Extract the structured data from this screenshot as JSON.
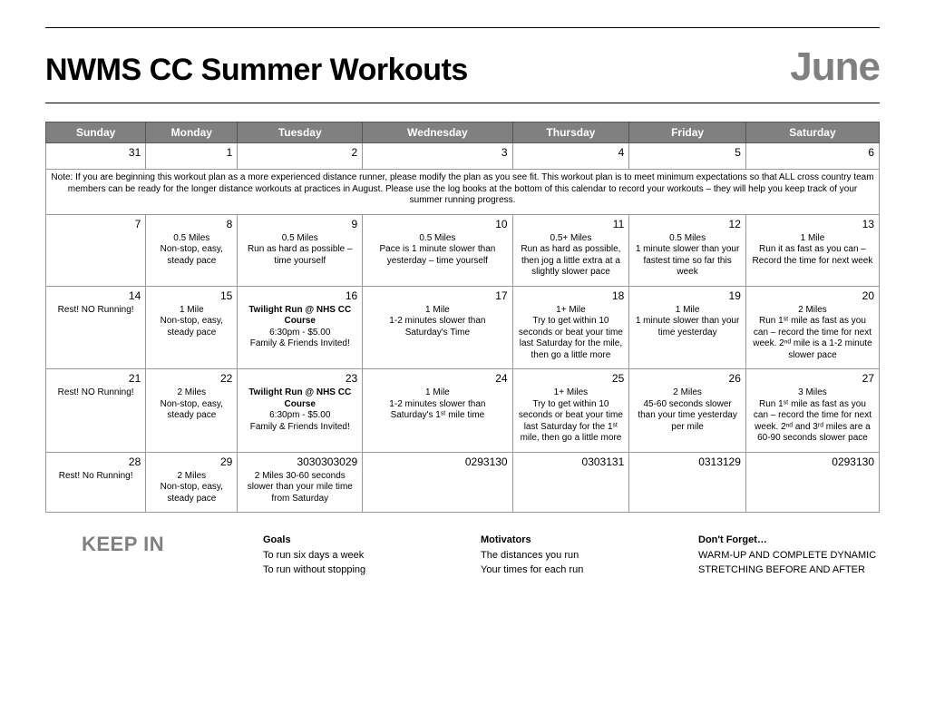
{
  "header": {
    "title": "NWMS CC Summer Workouts",
    "month": "June"
  },
  "days": [
    "Sunday",
    "Monday",
    "Tuesday",
    "Wednesday",
    "Thursday",
    "Friday",
    "Saturday"
  ],
  "note": "Note: If you are beginning this workout plan as a more experienced distance runner, please modify the plan as you see fit. This workout plan is to meet minimum expectations so that ALL cross country team members can be ready for the longer distance workouts at practices in August. Please use the log books at the bottom of this calendar to record your workouts – they will help you keep track of your summer running progress.",
  "row1": {
    "d0": "31",
    "d1": "1",
    "d2": "2",
    "d3": "3",
    "d4": "4",
    "d5": "5",
    "d6": "6"
  },
  "row2": {
    "d0": "7",
    "d1": "8",
    "d2": "9",
    "d3": "10",
    "d4": "11",
    "d5": "12",
    "d6": "13",
    "c1": "0.5 Miles\nNon-stop, easy, steady pace",
    "c2": "0.5 Miles\nRun as hard as possible – time yourself",
    "c3": "0.5 Miles\nPace is 1 minute slower than yesterday – time yourself",
    "c4": "0.5+ Miles\nRun as hard as possible, then jog a little extra at a slightly slower pace",
    "c5": "0.5 Miles\n1 minute slower than your fastest time so far this week",
    "c6": "1 Mile\nRun it as fast as you can – Record the time for next week"
  },
  "row3": {
    "d0": "14",
    "d1": "15",
    "d2": "16",
    "d3": "17",
    "d4": "18",
    "d5": "19",
    "d6": "20",
    "c0": "Rest! NO Running!",
    "c1": "1 Mile\nNon-stop, easy, steady pace",
    "c2b": "Twilight Run @ NHS CC Course",
    "c2": "6:30pm - $5.00\nFamily & Friends Invited!",
    "c3": "1 Mile\n1-2 minutes slower than Saturday's Time",
    "c4": "1+ Mile\nTry to get within 10 seconds or beat your time last Saturday for the mile, then go a little more",
    "c5": "1 Mile\n1 minute slower than your time yesterday",
    "c6": "2 Miles\nRun 1ˢᵗ mile as fast as you can – record the time for next week. 2ⁿᵈ mile is a 1-2 minute slower pace"
  },
  "row4": {
    "d0": "21",
    "d1": "22",
    "d2": "23",
    "d3": "24",
    "d4": "25",
    "d5": "26",
    "d6": "27",
    "c0": "Rest! NO Running!",
    "c1": "2 Miles\nNon-stop, easy, steady pace",
    "c2b": "Twilight Run @ NHS CC Course",
    "c2": "6:30pm - $5.00\nFamily & Friends Invited!",
    "c3": "1 Mile\n1-2 minutes slower than Saturday's 1ˢᵗ mile time",
    "c4": "1+ Miles\nTry to get within 10 seconds or beat your time last Saturday for the 1ˢᵗ mile, then go a little more",
    "c5": "2 Miles\n45-60 seconds slower than your time yesterday per mile",
    "c6": "3 Miles\nRun 1ˢᵗ mile as fast as you can – record the time for next week. 2ⁿᵈ and 3ʳᵈ miles are a 60-90 seconds slower pace"
  },
  "row5": {
    "d0": "28",
    "d1": "29",
    "d2": "3030303029",
    "d3": "0293130",
    "d4": "0303131",
    "d5": "0313129",
    "d6": "0293130",
    "c0": "Rest! No Running!",
    "c1": "2 Miles\nNon-stop, easy, steady pace",
    "c2": "2 Miles 30-60 seconds slower than your mile time from Saturday"
  },
  "footer": {
    "keepin": "KEEP IN",
    "goals_h": "Goals",
    "goals_1": "To run six days a week",
    "goals_2": "To run without stopping",
    "mot_h": "Motivators",
    "mot_1": "The distances you run",
    "mot_2": "Your times for each run",
    "dont_h": "Don't Forget…",
    "dont_1": "WARM-UP AND COMPLETE DYNAMIC STRETCHING BEFORE AND AFTER"
  }
}
